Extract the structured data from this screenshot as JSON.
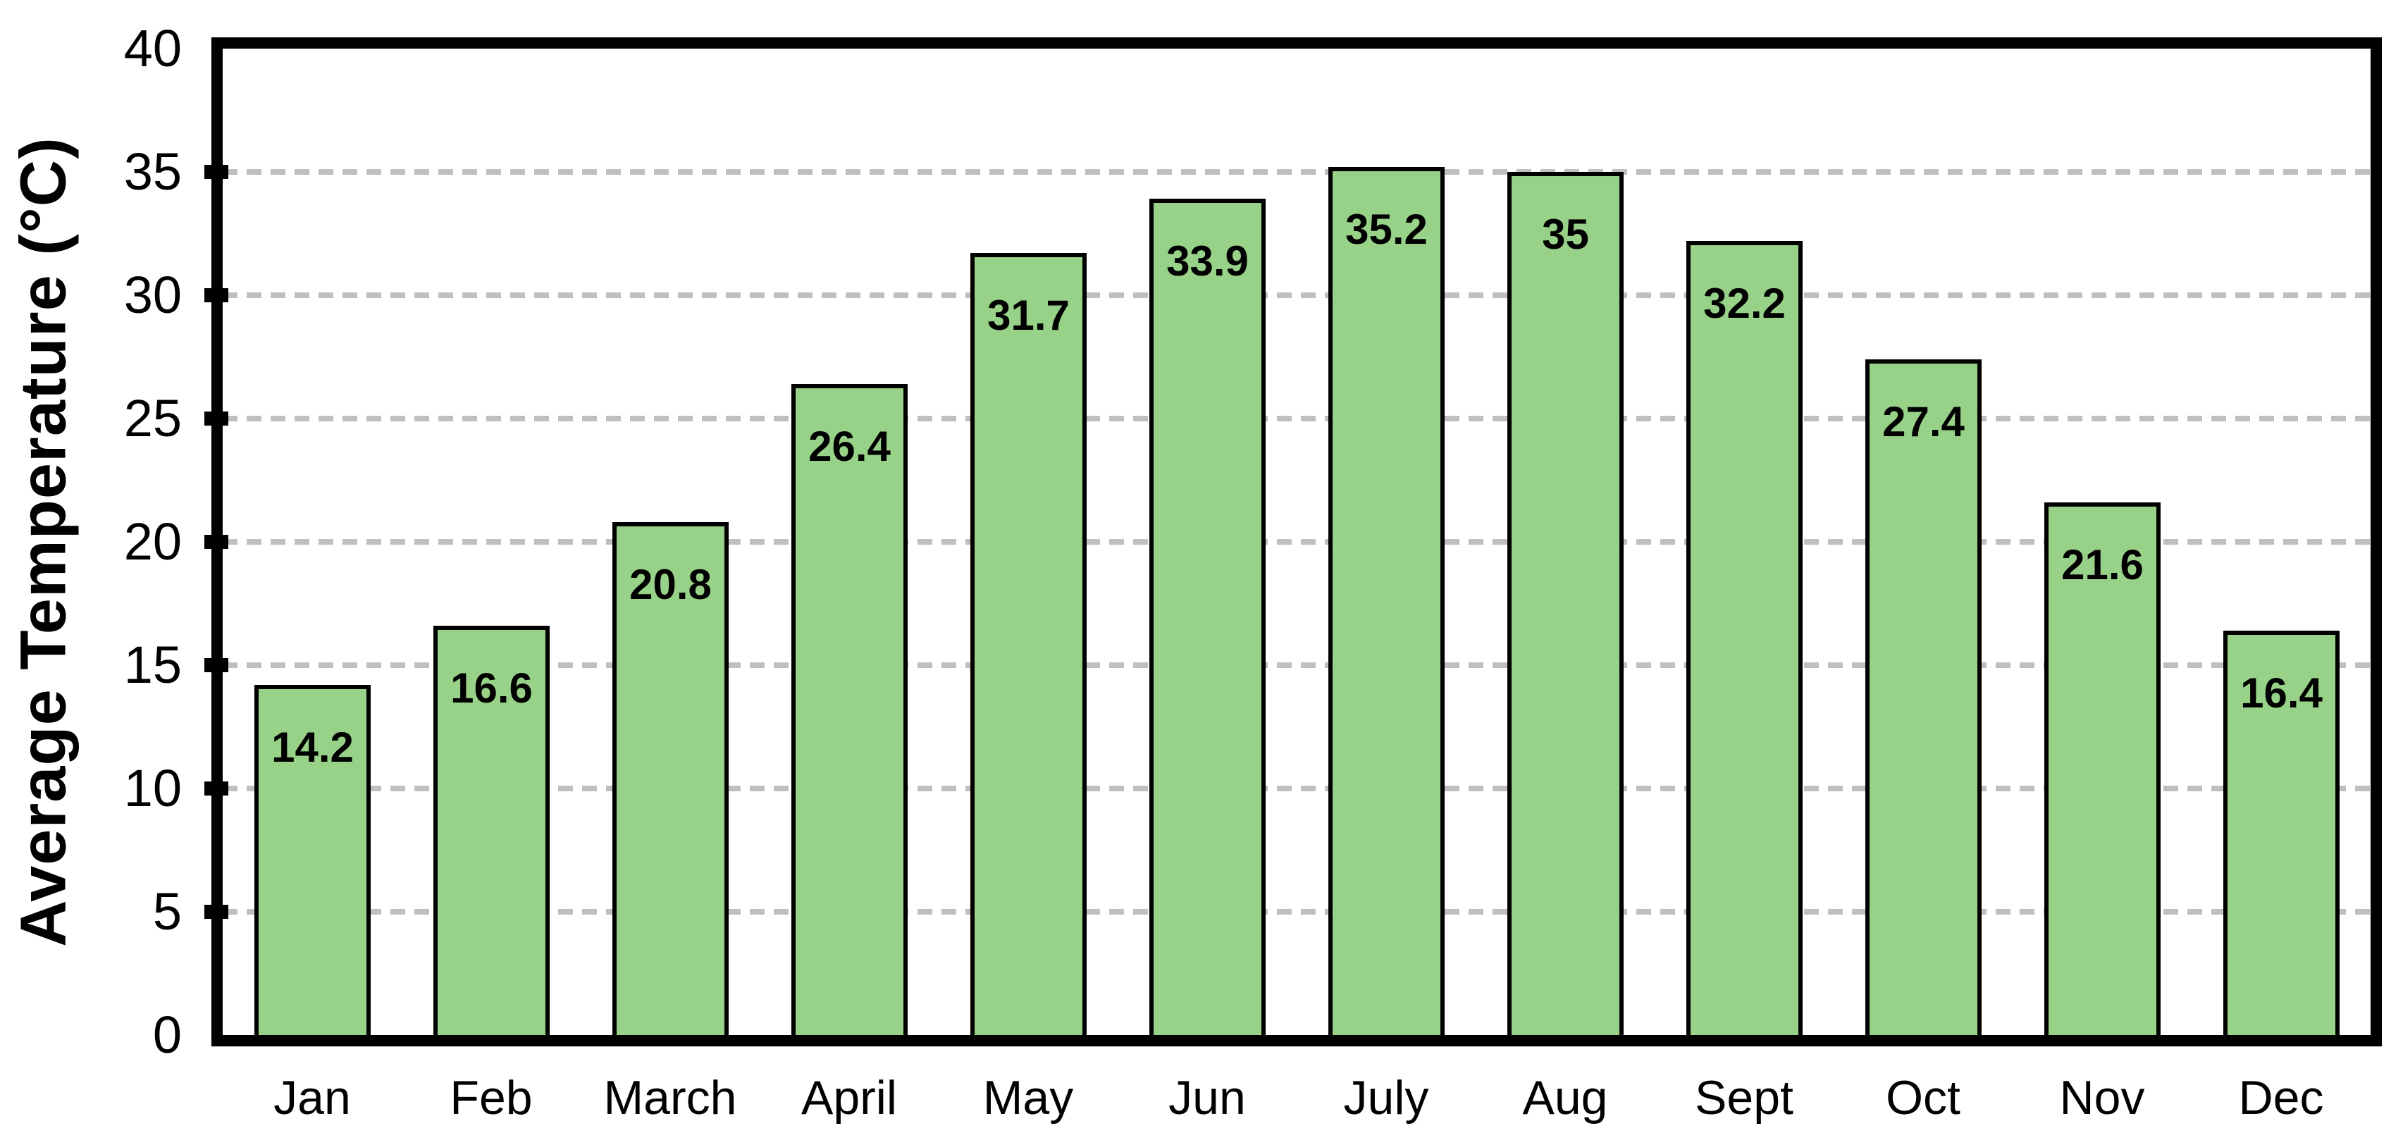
{
  "chart_data": {
    "type": "bar",
    "title": "",
    "categories": [
      "Jan",
      "Feb",
      "March",
      "April",
      "May",
      "Jun",
      "July",
      "Aug",
      "Sept",
      "Oct",
      "Nov",
      "Dec"
    ],
    "values": [
      14.2,
      16.6,
      20.8,
      26.4,
      31.7,
      33.9,
      35.2,
      35,
      32.2,
      27.4,
      21.6,
      16.4
    ],
    "value_labels": [
      "14.2",
      "16.6",
      "20.8",
      "26.4",
      "31.7",
      "33.9",
      "35.2",
      "35",
      "32.2",
      "27.4",
      "21.6",
      "16.4"
    ],
    "xlabel": "",
    "ylabel": "Average Temperature (°C)",
    "ylim": [
      0,
      40
    ],
    "ytick_step": 5,
    "yticks": [
      0,
      5,
      10,
      15,
      20,
      25,
      30,
      35,
      40
    ],
    "grid": "horizontal-dashed",
    "legend": "none",
    "data_label_position": "inside-end",
    "colors": {
      "bar_fill": "#98D288",
      "bar_border": "#000000",
      "gridline": "#BFBFBF",
      "axis_border": "#000000",
      "text": "#000000",
      "background": "#FFFFFF"
    }
  }
}
